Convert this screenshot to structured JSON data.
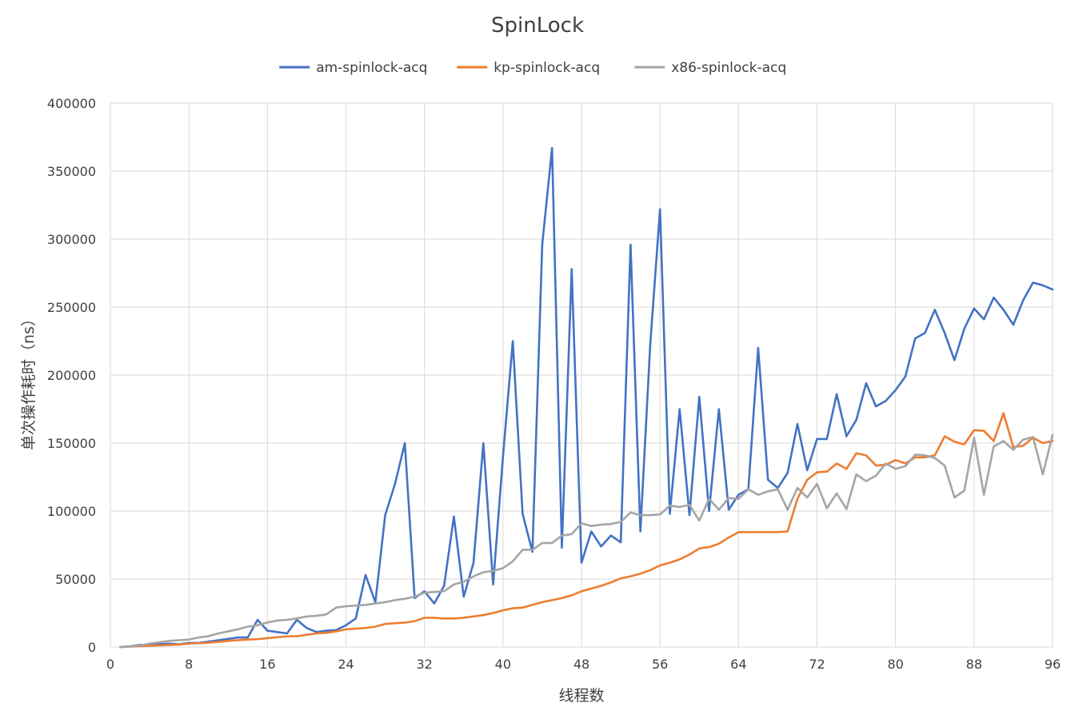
{
  "chart_data": {
    "type": "line",
    "title": "SpinLock",
    "xlabel": "线程数",
    "ylabel": "单次操作耗时（ns）",
    "xlim": [
      0,
      96
    ],
    "ylim": [
      0,
      400000
    ],
    "x_ticks": [
      "0",
      "8",
      "16",
      "24",
      "32",
      "40",
      "48",
      "56",
      "64",
      "72",
      "80",
      "88",
      "96"
    ],
    "y_ticks": [
      "0",
      "50000",
      "100000",
      "150000",
      "200000",
      "250000",
      "300000",
      "350000",
      "400000"
    ],
    "grid": true,
    "legend_position": "top",
    "x": [
      1,
      2,
      3,
      4,
      5,
      6,
      7,
      8,
      9,
      10,
      11,
      12,
      13,
      14,
      15,
      16,
      17,
      18,
      19,
      20,
      21,
      22,
      23,
      24,
      25,
      26,
      27,
      28,
      29,
      30,
      31,
      32,
      33,
      34,
      35,
      36,
      37,
      38,
      39,
      40,
      41,
      42,
      43,
      44,
      45,
      46,
      47,
      48,
      49,
      50,
      51,
      52,
      53,
      54,
      55,
      56,
      57,
      58,
      59,
      60,
      61,
      62,
      63,
      64,
      65,
      66,
      67,
      68,
      69,
      70,
      71,
      72,
      73,
      74,
      75,
      76,
      77,
      78,
      79,
      80,
      81,
      82,
      83,
      84,
      85,
      86,
      87,
      88,
      89,
      90,
      91,
      92,
      93,
      94,
      95,
      96
    ],
    "series": [
      {
        "name": "am-spinlock-acq",
        "color": "#4472c4",
        "values": [
          0,
          500,
          1500,
          1000,
          2000,
          2500,
          2000,
          3000,
          3000,
          4000,
          5000,
          6000,
          7000,
          7000,
          20000,
          12000,
          11000,
          10000,
          20000,
          14000,
          11000,
          12000,
          12500,
          16000,
          21000,
          53000,
          33000,
          97000,
          120000,
          150000,
          36000,
          41000,
          32000,
          45000,
          96000,
          37000,
          62000,
          150000,
          46000,
          140000,
          225000,
          98000,
          70000,
          296000,
          367000,
          73000,
          278000,
          62000,
          85000,
          74000,
          82000,
          77000,
          296000,
          85000,
          222000,
          322000,
          98000,
          175000,
          97000,
          184000,
          100000,
          175000,
          101000,
          112000,
          116000,
          220000,
          123000,
          117000,
          128000,
          164000,
          130000,
          153000,
          153000,
          186000,
          155000,
          167000,
          194000,
          177000,
          181000,
          189000,
          199000,
          227000,
          231000,
          248000,
          231000,
          211000,
          234000,
          249000,
          241000,
          257000,
          248000,
          237000,
          255000,
          268000,
          266000,
          263000
        ]
      },
      {
        "name": "kp-spinlock-acq",
        "color": "#ed7d31",
        "values": [
          0,
          300,
          600,
          900,
          1200,
          1500,
          1800,
          2500,
          2800,
          3200,
          3800,
          4500,
          5000,
          5500,
          5800,
          6500,
          7200,
          7800,
          8000,
          9000,
          10000,
          10500,
          11500,
          13000,
          13500,
          14000,
          15000,
          17000,
          17500,
          18000,
          19000,
          21500,
          21500,
          21000,
          21000,
          21500,
          22500,
          23500,
          25000,
          27000,
          28500,
          29000,
          31000,
          33000,
          34500,
          36000,
          38000,
          41000,
          43000,
          45000,
          47500,
          50500,
          52000,
          54000,
          56500,
          60000,
          62000,
          64500,
          68000,
          72500,
          73500,
          76000,
          80500,
          84500,
          84500,
          84500,
          84500,
          84500,
          85000,
          109000,
          123000,
          128500,
          129000,
          135000,
          131000,
          142500,
          141000,
          133500,
          134000,
          137500,
          135000,
          139500,
          139500,
          141000,
          155000,
          151000,
          149000,
          159500,
          159000,
          151500,
          172000,
          147000,
          148000,
          154000,
          150000,
          151500
        ]
      },
      {
        "name": "x86-spinlock-acq",
        "color": "#a5a5a5",
        "values": [
          0,
          500,
          1000,
          2500,
          3500,
          4500,
          5000,
          5500,
          7000,
          8000,
          10000,
          11500,
          13000,
          15000,
          16000,
          18000,
          19500,
          20000,
          21000,
          22500,
          23000,
          24000,
          29000,
          30000,
          30500,
          31000,
          32000,
          33000,
          34500,
          35500,
          37000,
          40000,
          40500,
          41000,
          46000,
          48000,
          52000,
          55000,
          56000,
          58000,
          63000,
          71500,
          71500,
          76500,
          76500,
          82000,
          83000,
          91000,
          89000,
          90000,
          90500,
          92000,
          99000,
          97000,
          97000,
          97500,
          104000,
          103000,
          104500,
          93000,
          109000,
          101000,
          109500,
          109000,
          116000,
          112000,
          114500,
          116000,
          101000,
          117000,
          110000,
          120000,
          102000,
          113000,
          101500,
          127000,
          122000,
          126000,
          135000,
          131000,
          133000,
          141500,
          141000,
          139000,
          133500,
          110000,
          115000,
          154000,
          112000,
          147500,
          151500,
          145000,
          152500,
          154500,
          127000,
          156000
        ]
      }
    ]
  }
}
